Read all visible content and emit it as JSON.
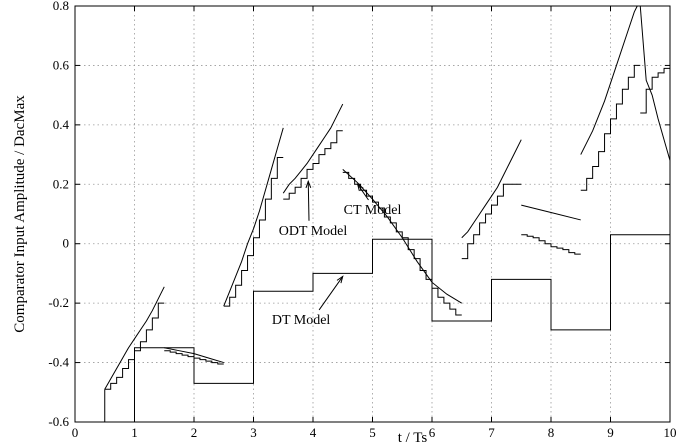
{
  "chart_data": {
    "type": "line",
    "title": "",
    "xlabel": "t / Ts",
    "ylabel": "Comparator Input Amplitude / DacMax",
    "xlim": [
      0,
      10
    ],
    "ylim": [
      -0.6,
      0.8
    ],
    "xticks": [
      0,
      1,
      2,
      3,
      4,
      5,
      6,
      7,
      8,
      9,
      10
    ],
    "yticks": [
      -0.6,
      -0.4,
      -0.2,
      0,
      0.2,
      0.4,
      0.6,
      0.8
    ],
    "xtick_labels": [
      "0",
      "1",
      "2",
      "3",
      "4",
      "5",
      "6",
      "7",
      "8",
      "9",
      "10"
    ],
    "ytick_labels": [
      "-0.6",
      "-0.4",
      "-0.2",
      "0",
      "0.2",
      "0.4",
      "0.6",
      "0.8"
    ],
    "grid": true,
    "legend": "none",
    "annotations": [
      {
        "text": "CT Model",
        "x": 5.0,
        "y": 0.1,
        "points_to": [
          4.75,
          0.2
        ]
      },
      {
        "text": "ODT Model",
        "x": 4.0,
        "y": 0.03,
        "points_to": [
          3.92,
          0.21
        ]
      },
      {
        "text": "DT Model",
        "x": 3.8,
        "y": -0.27,
        "points_to": [
          4.5,
          -0.11
        ]
      }
    ],
    "series": [
      {
        "style": "smooth",
        "segments": [
          [
            [
              0.5,
              -0.49
            ],
            [
              0.6,
              -0.455
            ],
            [
              0.7,
              -0.42
            ],
            [
              0.8,
              -0.385
            ],
            [
              0.9,
              -0.35
            ],
            [
              1.0,
              -0.32
            ],
            [
              1.1,
              -0.29
            ],
            [
              1.2,
              -0.26
            ],
            [
              1.3,
              -0.225
            ],
            [
              1.4,
              -0.185
            ],
            [
              1.5,
              -0.145
            ]
          ],
          [
            [
              1.5,
              -0.35
            ],
            [
              1.75,
              -0.36
            ],
            [
              2.0,
              -0.37
            ],
            [
              2.25,
              -0.385
            ],
            [
              2.5,
              -0.4
            ]
          ],
          [
            [
              2.5,
              -0.21
            ],
            [
              2.6,
              -0.16
            ],
            [
              2.7,
              -0.11
            ],
            [
              2.8,
              -0.06
            ],
            [
              2.9,
              0.0
            ],
            [
              3.0,
              0.05
            ],
            [
              3.1,
              0.11
            ],
            [
              3.2,
              0.18
            ],
            [
              3.3,
              0.25
            ],
            [
              3.4,
              0.32
            ],
            [
              3.5,
              0.39
            ]
          ],
          [
            [
              3.5,
              0.17
            ],
            [
              3.6,
              0.2
            ],
            [
              3.7,
              0.22
            ],
            [
              3.8,
              0.245
            ],
            [
              3.9,
              0.27
            ],
            [
              4.0,
              0.3
            ],
            [
              4.1,
              0.33
            ],
            [
              4.2,
              0.36
            ],
            [
              4.3,
              0.39
            ],
            [
              4.4,
              0.43
            ],
            [
              4.5,
              0.47
            ]
          ],
          [
            [
              4.5,
              0.25
            ],
            [
              4.75,
              0.205
            ],
            [
              5.0,
              0.15
            ],
            [
              5.25,
              0.09
            ],
            [
              5.5,
              0.02
            ],
            [
              5.75,
              -0.06
            ],
            [
              6.0,
              -0.13
            ],
            [
              6.25,
              -0.17
            ],
            [
              6.5,
              -0.2
            ]
          ],
          [
            [
              6.5,
              0.02
            ],
            [
              6.6,
              0.04
            ],
            [
              6.7,
              0.07
            ],
            [
              6.8,
              0.1
            ],
            [
              6.9,
              0.13
            ],
            [
              7.0,
              0.16
            ],
            [
              7.1,
              0.19
            ],
            [
              7.2,
              0.23
            ],
            [
              7.3,
              0.27
            ],
            [
              7.4,
              0.31
            ],
            [
              7.5,
              0.35
            ]
          ],
          [
            [
              7.5,
              0.13
            ],
            [
              8.0,
              0.105
            ],
            [
              8.5,
              0.08
            ]
          ],
          [
            [
              8.5,
              0.3
            ],
            [
              8.7,
              0.38
            ],
            [
              8.9,
              0.48
            ],
            [
              9.1,
              0.6
            ],
            [
              9.3,
              0.72
            ],
            [
              9.4,
              0.78
            ],
            [
              9.45,
              0.8
            ]
          ],
          [
            [
              9.5,
              0.8
            ],
            [
              9.6,
              0.55
            ],
            [
              9.7,
              0.5
            ],
            [
              9.8,
              0.42
            ],
            [
              9.9,
              0.35
            ],
            [
              10.0,
              0.28
            ]
          ]
        ]
      },
      {
        "style": "step",
        "segments": [
          [
            [
              0.5,
              -0.49
            ],
            [
              0.6,
              -0.47
            ],
            [
              0.7,
              -0.45
            ],
            [
              0.8,
              -0.42
            ],
            [
              0.9,
              -0.39
            ],
            [
              1.0,
              -0.36
            ],
            [
              1.1,
              -0.33
            ],
            [
              1.2,
              -0.29
            ],
            [
              1.3,
              -0.25
            ],
            [
              1.4,
              -0.2
            ],
            [
              1.5,
              -0.2
            ]
          ],
          [
            [
              1.5,
              -0.36
            ],
            [
              1.6,
              -0.365
            ],
            [
              1.7,
              -0.37
            ],
            [
              1.8,
              -0.375
            ],
            [
              1.9,
              -0.38
            ],
            [
              2.0,
              -0.385
            ],
            [
              2.1,
              -0.39
            ],
            [
              2.2,
              -0.395
            ],
            [
              2.3,
              -0.4
            ],
            [
              2.4,
              -0.405
            ],
            [
              2.5,
              -0.405
            ]
          ],
          [
            [
              2.5,
              -0.21
            ],
            [
              2.6,
              -0.18
            ],
            [
              2.7,
              -0.14
            ],
            [
              2.8,
              -0.09
            ],
            [
              2.9,
              -0.04
            ],
            [
              3.0,
              0.02
            ],
            [
              3.1,
              0.08
            ],
            [
              3.2,
              0.15
            ],
            [
              3.3,
              0.22
            ],
            [
              3.4,
              0.29
            ],
            [
              3.5,
              0.29
            ]
          ],
          [
            [
              3.5,
              0.15
            ],
            [
              3.6,
              0.17
            ],
            [
              3.7,
              0.19
            ],
            [
              3.8,
              0.22
            ],
            [
              3.9,
              0.25
            ],
            [
              4.0,
              0.27
            ],
            [
              4.1,
              0.3
            ],
            [
              4.2,
              0.32
            ],
            [
              4.3,
              0.34
            ],
            [
              4.4,
              0.38
            ],
            [
              4.5,
              0.38
            ]
          ],
          [
            [
              4.5,
              0.24
            ],
            [
              4.6,
              0.22
            ],
            [
              4.7,
              0.2
            ],
            [
              4.8,
              0.18
            ],
            [
              4.9,
              0.16
            ],
            [
              5.0,
              0.14
            ],
            [
              5.1,
              0.12
            ],
            [
              5.2,
              0.09
            ],
            [
              5.3,
              0.07
            ],
            [
              5.4,
              0.04
            ],
            [
              5.5,
              0.02
            ],
            [
              5.6,
              -0.02
            ],
            [
              5.7,
              -0.05
            ],
            [
              5.8,
              -0.09
            ],
            [
              5.9,
              -0.12
            ],
            [
              6.0,
              -0.15
            ],
            [
              6.1,
              -0.18
            ],
            [
              6.2,
              -0.2
            ],
            [
              6.3,
              -0.22
            ],
            [
              6.4,
              -0.24
            ],
            [
              6.5,
              -0.24
            ]
          ],
          [
            [
              6.5,
              -0.05
            ],
            [
              6.6,
              0.0
            ],
            [
              6.7,
              0.03
            ],
            [
              6.8,
              0.07
            ],
            [
              6.9,
              0.1
            ],
            [
              7.0,
              0.13
            ],
            [
              7.1,
              0.16
            ],
            [
              7.2,
              0.2
            ],
            [
              7.3,
              0.2
            ],
            [
              7.4,
              0.2
            ],
            [
              7.5,
              0.2
            ]
          ],
          [
            [
              7.5,
              0.03
            ],
            [
              7.6,
              0.025
            ],
            [
              7.7,
              0.02
            ],
            [
              7.8,
              0.01
            ],
            [
              7.9,
              0.0
            ],
            [
              8.0,
              -0.01
            ],
            [
              8.1,
              -0.015
            ],
            [
              8.2,
              -0.02
            ],
            [
              8.3,
              -0.03
            ],
            [
              8.4,
              -0.035
            ],
            [
              8.5,
              -0.035
            ]
          ],
          [
            [
              8.5,
              0.18
            ],
            [
              8.6,
              0.22
            ],
            [
              8.7,
              0.26
            ],
            [
              8.8,
              0.31
            ],
            [
              8.9,
              0.37
            ],
            [
              9.0,
              0.42
            ],
            [
              9.1,
              0.47
            ],
            [
              9.2,
              0.52
            ],
            [
              9.3,
              0.56
            ],
            [
              9.4,
              0.6
            ],
            [
              9.5,
              0.6
            ]
          ],
          [
            [
              9.5,
              0.44
            ],
            [
              9.6,
              0.52
            ],
            [
              9.7,
              0.56
            ],
            [
              9.8,
              0.575
            ],
            [
              9.9,
              0.59
            ],
            [
              10.0,
              0.59
            ]
          ]
        ]
      },
      {
        "style": "step",
        "segments": [
          [
            [
              0,
              -0.6
            ],
            [
              0.5,
              -0.6
            ],
            [
              0.5,
              -0.49
            ]
          ],
          [
            [
              1.0,
              -0.6
            ],
            [
              1.0,
              -0.35
            ],
            [
              2.0,
              -0.35
            ],
            [
              2.0,
              -0.47
            ],
            [
              3.0,
              -0.47
            ],
            [
              3.0,
              -0.16
            ],
            [
              4.0,
              -0.16
            ],
            [
              4.0,
              -0.1
            ],
            [
              5.0,
              -0.1
            ],
            [
              5.0,
              0.015
            ],
            [
              6.0,
              0.015
            ],
            [
              6.0,
              -0.26
            ],
            [
              7.0,
              -0.26
            ],
            [
              7.0,
              -0.12
            ],
            [
              8.0,
              -0.12
            ],
            [
              8.0,
              -0.29
            ],
            [
              9.0,
              -0.29
            ],
            [
              9.0,
              0.03
            ],
            [
              10.0,
              0.03
            ]
          ]
        ]
      }
    ]
  }
}
